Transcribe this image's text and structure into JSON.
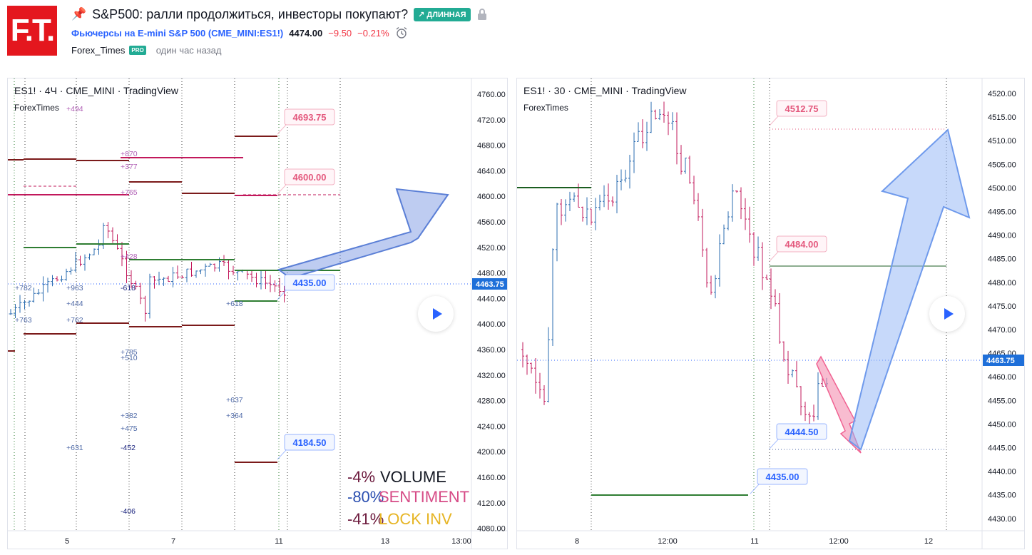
{
  "header": {
    "logo_text": "F.T.",
    "title": "S&P500: ралли продолжиться, инвесторы покупают?",
    "badge": "↗ ДЛИННАЯ",
    "symbol_name": "Фьючерсы на E-mini S&P 500",
    "symbol_ticker": "(CME_MINI:ES1!)",
    "price": "4474.00",
    "change": "−9.50",
    "change_pct": "−0.21%",
    "author": "Forex_Times",
    "pro": "PRO",
    "time_ago": "один час назад"
  },
  "colors": {
    "up": "#2b6cb0",
    "down": "#c2185b",
    "brand": "#e4171e",
    "long": "#22ab94",
    "blue_label": "#2962ff"
  },
  "left_chart": {
    "title": "ES1! · 4Ч · CME_MINI · TradingView",
    "subtitle": "ForexTimes",
    "price_scale": [
      "4760.00",
      "4720.00",
      "4680.00",
      "4640.00",
      "4600.00",
      "4560.00",
      "4520.00",
      "4480.00",
      "4440.00",
      "4400.00",
      "4360.00",
      "4320.00",
      "4280.00",
      "4240.00",
      "4200.00",
      "4160.00",
      "4120.00",
      "4080.00"
    ],
    "current_price": "4463.75",
    "time_labels": [
      "5",
      "7",
      "11",
      "13",
      "13:00"
    ],
    "labels": [
      "4693.75",
      "4600.00",
      "4435.00",
      "4184.50"
    ],
    "volume_notes": [
      "+494",
      "+870",
      "+377",
      "+765",
      "+428",
      "+782",
      "+963",
      "-618",
      "+444",
      "+618",
      "+763",
      "+762",
      "+785",
      "+510",
      "+637",
      "+382",
      "+364",
      "+475",
      "+631",
      "-452",
      "-406"
    ],
    "stats": [
      {
        "value": "-4%",
        "label": "VOLUME"
      },
      {
        "value": "-80%",
        "label": "SENTIMENT"
      },
      {
        "value": "-41%",
        "label": "LOCK INV"
      }
    ]
  },
  "right_chart": {
    "title": "ES1! · 30 · CME_MINI · TradingView",
    "subtitle": "ForexTimes",
    "price_scale": [
      "4520.00",
      "4515.00",
      "4510.00",
      "4505.00",
      "4500.00",
      "4495.00",
      "4490.00",
      "4485.00",
      "4480.00",
      "4475.00",
      "4470.00",
      "4465.00",
      "4460.00",
      "4455.00",
      "4450.00",
      "4445.00",
      "4440.00",
      "4435.00",
      "4430.00"
    ],
    "current_price": "4463.75",
    "time_labels": [
      "8",
      "12:00",
      "11",
      "12:00",
      "12"
    ],
    "labels": [
      "4512.75",
      "4484.00",
      "4444.50",
      "4435.00"
    ]
  }
}
